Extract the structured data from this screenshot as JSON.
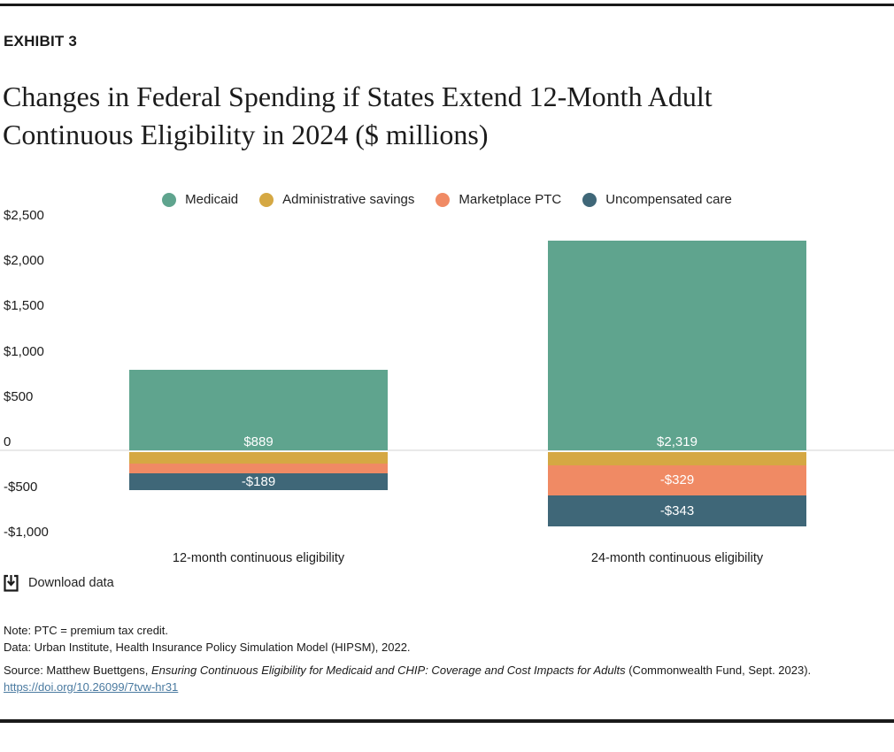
{
  "header": {
    "exhibit": "EXHIBIT 3",
    "title_lines": [
      "Changes in Federal Spending if States Extend 12-Month Adult",
      "Continuous Eligibility in 2024 ($ millions)"
    ]
  },
  "chart_data": {
    "type": "bar",
    "stacked": true,
    "title": "Changes in Federal Spending if States Extend 12-Month Adult Continuous Eligibility in 2024 ($ millions)",
    "categories": [
      "12-month continuous eligibility",
      "24-month continuous eligibility"
    ],
    "series": [
      {
        "name": "Medicaid",
        "color": "#5fa48e",
        "values": [
          889,
          2319
        ],
        "data_labels": [
          "$889",
          "$2,319"
        ]
      },
      {
        "name": "Administrative savings",
        "color": "#d5a843",
        "values": [
          -130,
          -151
        ],
        "data_labels": [
          "",
          ""
        ]
      },
      {
        "name": "Marketplace PTC",
        "color": "#f08a64",
        "values": [
          -105,
          -329
        ],
        "data_labels": [
          "",
          "-$329"
        ]
      },
      {
        "name": "Uncompensated care",
        "color": "#3f6778",
        "values": [
          -189,
          -343
        ],
        "data_labels": [
          "-$189",
          "-$343"
        ]
      }
    ],
    "y_axis": {
      "range": [
        -1000,
        2500
      ],
      "ticks": [
        {
          "label": "$2,500",
          "value": 2500
        },
        {
          "label": "$2,000",
          "value": 2000
        },
        {
          "label": "$1,500",
          "value": 1500
        },
        {
          "label": "$1,000",
          "value": 1000
        },
        {
          "label": "$500",
          "value": 500
        },
        {
          "label": "0",
          "value": 0
        },
        {
          "label": "-$500",
          "value": -500
        },
        {
          "label": "-$1,000",
          "value": -1000
        }
      ]
    },
    "legend_position": "top",
    "grid": "zero-line-only"
  },
  "download": {
    "label": "Download data"
  },
  "footnotes": {
    "note": "Note: PTC = premium tax credit.",
    "data": "Data: Urban Institute, Health Insurance Policy Simulation Model (HIPSM), 2022.",
    "source_prefix": "Source: Matthew Buettgens, ",
    "source_title": "Ensuring Continuous Eligibility for Medicaid and CHIP: Coverage and Cost Impacts for Adults",
    "source_suffix": " (Commonwealth Fund, Sept. 2023).",
    "link": "https://doi.org/10.26099/7tvw-hr31"
  },
  "colors": {
    "grid": "#e9e9e9",
    "rule": "#1a1a1a",
    "bar_label_text": "#ffffff",
    "link": "#4a7aa0"
  }
}
